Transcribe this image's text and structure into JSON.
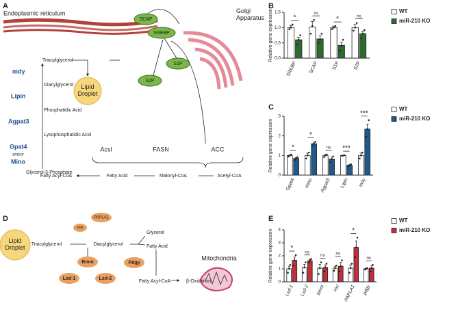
{
  "panels": [
    "A",
    "B",
    "C",
    "D",
    "E"
  ],
  "diagram_a": {
    "er": "Endoplasmic reticulum",
    "scap": "SCAP",
    "srebp": "SREBP",
    "golgi": "Golgi Apparatus",
    "s1p": "S1P",
    "s2p": "S2P",
    "tag": "Triacylglycerol",
    "mdy": "mdy",
    "dag": "Diacylglycerol",
    "lipin": "Lipin",
    "pa": "Phosphatidic Acid",
    "agpat3": "Agpat3",
    "lpa": "Lysophosphatidic Acid",
    "gpat4": "Gpat4",
    "andor": "and/or",
    "mino": "Mino",
    "g3p": "Glycerol-3-Phosphate",
    "droplet": "Lipid Droplet",
    "acsl": "Acsl",
    "fasn": "FASN",
    "acc": "ACC",
    "fac": "Fatty Acyl-CoA",
    "fa": "Fatty Acid",
    "mal": "Malonyl-CoA",
    "ace": "Acetyl-CoA"
  },
  "diagram_d": {
    "droplet": "Lipid Droplet",
    "tag": "Triacylglycerol",
    "dag": "Diacylglycerol",
    "hsl": "Hsl",
    "papla1": "PAPLA1",
    "glycerol": "Glycerol",
    "fa": "Fatty Acid",
    "bmm": "Bmm",
    "lsd1": "Lsd-1",
    "lsd2": "Lsd-2",
    "pdgy": "Pdgy",
    "fac": "Fatty Acyl-CoA",
    "box": "β-Oxidation",
    "mito": "Mitochondria"
  },
  "chart_data": [
    {
      "type": "bar",
      "ylabel": "Relative gene expression",
      "categories": [
        "SREBP",
        "SCAP",
        "S1P",
        "S2P"
      ],
      "series": [
        {
          "name": "WT",
          "color": "#ffffff",
          "values": [
            1.0,
            1.02,
            1.0,
            1.0
          ],
          "errors": [
            0.07,
            0.18,
            0.05,
            0.1
          ],
          "points": [
            [
              0.95,
              1.0,
              1.1
            ],
            [
              0.8,
              1.05,
              1.25
            ],
            [
              0.95,
              1.0,
              1.05
            ],
            [
              0.9,
              1.0,
              1.15
            ]
          ]
        },
        {
          "name": "miR-210 KO",
          "color": "#2e6b2e",
          "values": [
            0.6,
            0.63,
            0.42,
            0.8
          ],
          "errors": [
            0.08,
            0.1,
            0.1,
            0.08
          ],
          "points": [
            [
              0.45,
              0.6,
              0.75
            ],
            [
              0.5,
              0.6,
              0.8
            ],
            [
              0.25,
              0.4,
              0.6
            ],
            [
              0.65,
              0.8,
              0.92
            ]
          ]
        }
      ],
      "significance": [
        "*",
        "ns",
        "*",
        "ns"
      ],
      "ylim": [
        0,
        1.5
      ],
      "yticks": [
        {
          "value": 0,
          "label": "0.0"
        },
        {
          "value": 0.5,
          "label": "0.5"
        },
        {
          "value": 1,
          "label": "1.0"
        },
        {
          "value": 1.5,
          "label": "1.5"
        }
      ],
      "legend": "right"
    },
    {
      "type": "bar",
      "ylabel": "Relative gene expression",
      "categories": [
        "Gpat4",
        "mino",
        "Agpat3",
        "Lipin",
        "mdy"
      ],
      "series": [
        {
          "name": "WT",
          "color": "#ffffff",
          "values": [
            1.0,
            1.0,
            1.0,
            1.0,
            1.0
          ],
          "errors": [
            0.03,
            0.12,
            0.05,
            0.01,
            0.12
          ],
          "points": [
            [
              0.95,
              1.0,
              1.05
            ],
            [
              0.85,
              1.0,
              1.15
            ],
            [
              0.92,
              1.0,
              1.05
            ],
            [
              0.99,
              1.0,
              1.01
            ],
            [
              0.85,
              1.0,
              1.15
            ]
          ]
        },
        {
          "name": "miR-210 KO",
          "color": "#1f5a8a",
          "values": [
            0.85,
            1.6,
            0.82,
            0.5,
            2.35
          ],
          "errors": [
            0.05,
            0.07,
            0.1,
            0.03,
            0.25
          ],
          "points": [
            [
              0.78,
              0.85,
              0.92
            ],
            [
              1.5,
              1.6,
              1.7
            ],
            [
              0.65,
              0.82,
              0.95
            ],
            [
              0.45,
              0.5,
              0.55
            ],
            [
              1.95,
              2.35,
              2.8
            ]
          ]
        }
      ],
      "significance": [
        "*",
        "*",
        "ns",
        "***",
        "***"
      ],
      "ylim": [
        0,
        3
      ],
      "yticks": [
        0,
        1,
        2,
        3
      ],
      "legend": "right"
    },
    {
      "type": "bar",
      "ylabel": "Relative gene expression",
      "categories": [
        "Lsd-1",
        "Lsd-2",
        "bmm",
        "Hsl",
        "PAPLA1",
        "pdgy"
      ],
      "series": [
        {
          "name": "WT",
          "color": "#ffffff",
          "values": [
            1.0,
            1.1,
            1.05,
            1.05,
            1.05,
            1.0
          ],
          "errors": [
            0.2,
            0.25,
            0.3,
            0.15,
            0.25,
            0.05
          ],
          "points": [
            [
              0.7,
              1.0,
              1.3
            ],
            [
              0.7,
              1.1,
              1.5
            ],
            [
              0.6,
              1.05,
              1.5
            ],
            [
              0.85,
              1.05,
              1.25
            ],
            [
              0.7,
              1.05,
              1.4
            ],
            [
              0.95,
              1.0,
              1.05
            ]
          ]
        },
        {
          "name": "miR-210 KO",
          "color": "#c0303a",
          "values": [
            1.65,
            1.62,
            1.1,
            1.2,
            2.65,
            1.05
          ],
          "errors": [
            0.25,
            0.1,
            0.2,
            0.3,
            0.5,
            0.2
          ],
          "points": [
            [
              1.25,
              1.65,
              2.05
            ],
            [
              1.5,
              1.62,
              1.75
            ],
            [
              0.8,
              1.1,
              1.4
            ],
            [
              0.8,
              1.2,
              1.65
            ],
            [
              1.9,
              2.65,
              3.4
            ],
            [
              0.8,
              1.05,
              1.3
            ]
          ]
        }
      ],
      "significance": [
        "*",
        "ns",
        "ns",
        "ns",
        "*",
        "ns"
      ],
      "ylim": [
        0,
        4
      ],
      "yticks": [
        0,
        1,
        2,
        3,
        4
      ],
      "legend": "right"
    }
  ]
}
